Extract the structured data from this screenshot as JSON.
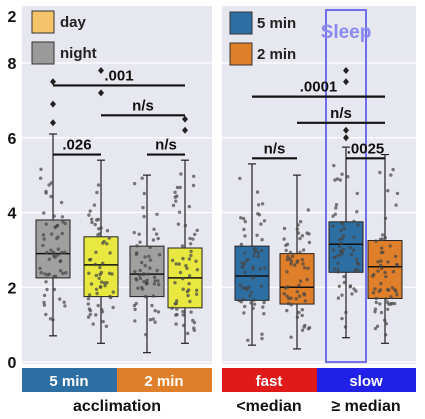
{
  "chart_data": [
    {
      "type": "boxplot",
      "panel": "left",
      "xlabel": "acclimation",
      "ylim": [
        0,
        8
      ],
      "yticks": [
        0,
        2,
        4,
        6,
        8
      ],
      "partial_top_tick": "2",
      "legend": [
        {
          "label": "day",
          "color": "#f5c36a"
        },
        {
          "label": "night",
          "color": "#9a9a9a"
        }
      ],
      "group_labels": [
        {
          "label": "5 min",
          "color": "#2e6fa3"
        },
        {
          "label": "2 min",
          "color": "#e07f2a"
        }
      ],
      "series": [
        {
          "name": "night",
          "group": "5 min",
          "color": "#a0a0a0",
          "whisker": [
            0.7,
            6.1
          ],
          "q1": 2.25,
          "median": 2.9,
          "q3": 3.8,
          "outliers": [
            6.4,
            6.9,
            7.5
          ]
        },
        {
          "name": "day",
          "group": "5 min",
          "color": "#e8e840",
          "whisker": [
            0.5,
            5.4
          ],
          "q1": 1.75,
          "median": 2.6,
          "q3": 3.35,
          "outliers": [
            7.2,
            7.8
          ]
        },
        {
          "name": "night",
          "group": "2 min",
          "color": "#a0a0a0",
          "whisker": [
            0.25,
            5.0
          ],
          "q1": 1.75,
          "median": 2.35,
          "q3": 3.1,
          "outliers": []
        },
        {
          "name": "day",
          "group": "2 min",
          "color": "#e8e840",
          "whisker": [
            0.5,
            5.4
          ],
          "q1": 1.45,
          "median": 2.25,
          "q3": 3.05,
          "outliers": [
            6.2,
            6.5
          ]
        }
      ],
      "annotations": [
        {
          "text": ".001",
          "from": 0,
          "to": 3,
          "y": 7.4
        },
        {
          "text": "n/s",
          "from": 1,
          "to": 3,
          "y": 6.6
        },
        {
          "text": ".026",
          "from": 0,
          "to": 1,
          "y": 5.55
        },
        {
          "text": "n/s",
          "from": 2,
          "to": 3,
          "y": 5.55
        }
      ]
    },
    {
      "type": "boxplot",
      "panel": "right",
      "xlabel": "",
      "ylim": [
        0,
        8
      ],
      "legend": [
        {
          "label": "5 min",
          "color": "#2e6fa3"
        },
        {
          "label": "2 min",
          "color": "#e07f2a"
        }
      ],
      "highlight_label": "Sleep",
      "group_labels": [
        {
          "label": "fast",
          "color": "#e01a1a",
          "sublabel": "<median"
        },
        {
          "label": "slow",
          "color": "#2020e8",
          "sublabel": "≥ median"
        }
      ],
      "series": [
        {
          "name": "5 min",
          "group": "fast",
          "color": "#2e6fa3",
          "whisker": [
            0.45,
            5.3
          ],
          "q1": 1.65,
          "median": 2.3,
          "q3": 3.1,
          "outliers": []
        },
        {
          "name": "2 min",
          "group": "fast",
          "color": "#e07f2a",
          "whisker": [
            0.35,
            5.0
          ],
          "q1": 1.55,
          "median": 2.0,
          "q3": 2.9,
          "outliers": []
        },
        {
          "name": "5 min",
          "group": "slow",
          "color": "#2e6fa3",
          "whisker": [
            0.65,
            5.75
          ],
          "q1": 2.4,
          "median": 3.15,
          "q3": 3.75,
          "outliers": [
            6.0,
            6.2,
            7.5,
            7.8
          ]
        },
        {
          "name": "2 min",
          "group": "slow",
          "color": "#e07f2a",
          "whisker": [
            0.5,
            5.55
          ],
          "q1": 1.7,
          "median": 2.55,
          "q3": 3.25,
          "outliers": []
        }
      ],
      "annotations": [
        {
          "text": ".0001",
          "from": 0,
          "to": 3,
          "y": 7.1
        },
        {
          "text": "n/s",
          "from": 1,
          "to": 3,
          "y": 6.4
        },
        {
          "text": "n/s",
          "from": 0,
          "to": 1,
          "y": 5.45
        },
        {
          "text": ".0025",
          "from": 2,
          "to": 3,
          "y": 5.45
        }
      ]
    }
  ]
}
